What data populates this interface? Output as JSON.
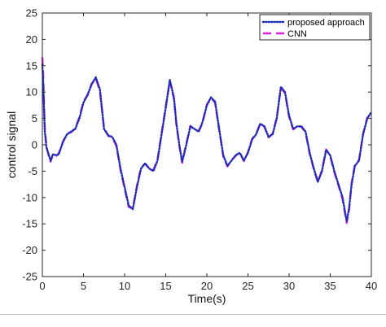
{
  "chart_data": {
    "type": "line",
    "title": "",
    "xlabel": "Time(s)",
    "ylabel": "control signal",
    "xlim": [
      0,
      40
    ],
    "ylim": [
      -25,
      25
    ],
    "xticks": [
      0,
      5,
      10,
      15,
      20,
      25,
      30,
      35,
      40
    ],
    "yticks": [
      -25,
      -20,
      -15,
      -10,
      -5,
      0,
      5,
      10,
      15,
      20,
      25
    ],
    "grid": false,
    "legend_position": "top-right",
    "x": [
      0,
      0.1,
      0.2,
      0.3,
      0.5,
      0.8,
      1,
      1.3,
      1.7,
      2,
      2.5,
      3,
      3.5,
      4,
      4.5,
      5,
      5.5,
      6,
      6.5,
      7,
      7.5,
      8,
      8.5,
      9,
      9.5,
      10,
      10.5,
      11,
      11.5,
      12,
      12.5,
      13,
      13.5,
      14,
      14.5,
      15,
      15.5,
      16,
      16.3,
      16.7,
      17,
      17.5,
      18,
      18.5,
      19,
      19.3,
      19.6,
      20,
      20.5,
      21,
      21.5,
      22,
      22.5,
      23,
      23.5,
      24,
      24.5,
      25,
      25.5,
      26,
      26.5,
      27,
      27.5,
      28,
      28.5,
      29,
      29.5,
      30,
      30.5,
      31,
      31.5,
      32,
      32.5,
      33,
      33.5,
      34,
      34.5,
      35,
      35.5,
      36,
      36.5,
      37,
      37.3,
      37.6,
      38,
      38.5,
      39,
      39.5,
      40
    ],
    "series": [
      {
        "name": "proposed approach",
        "color": "#1f2bb8",
        "style": "dotted",
        "values": [
          15.2,
          12,
          7,
          2.5,
          -0.5,
          -2,
          -3,
          -1.8,
          -2,
          -1.8,
          0.5,
          2,
          2.5,
          3,
          5,
          8,
          9.5,
          11.5,
          12.8,
          10.5,
          3,
          1.8,
          1.5,
          0,
          -4.5,
          -8,
          -11.5,
          -12.2,
          -8,
          -4.5,
          -3.5,
          -4.5,
          -5,
          -3,
          2,
          7,
          12.3,
          9,
          4,
          -0.5,
          -3.2,
          0,
          3.5,
          3,
          2.5,
          3.5,
          5,
          7.5,
          9,
          8.2,
          3,
          -2,
          -4,
          -3,
          -2,
          -1.5,
          -3,
          -1.5,
          1,
          2,
          4,
          3.5,
          1.5,
          2,
          5,
          11,
          10,
          5.5,
          3,
          3.5,
          3.5,
          2.5,
          -1.5,
          -4.5,
          -7,
          -5,
          -1,
          -2,
          -5,
          -7.5,
          -10,
          -14.5,
          -12,
          -7.5,
          -4,
          -3,
          2,
          5,
          6.2
        ]
      },
      {
        "name": "CNN",
        "color": "#e020e0",
        "style": "dashed",
        "values": [
          16.6,
          13.5,
          8,
          3,
          -0.3,
          -2.2,
          -3.2,
          -1.7,
          -2.1,
          -1.6,
          0.6,
          2.1,
          2.4,
          3.1,
          5.2,
          8.2,
          9.4,
          11.6,
          12.6,
          10.2,
          3.2,
          1.7,
          1.4,
          -0.2,
          -4.7,
          -8.3,
          -11.8,
          -12.1,
          -7.8,
          -4.3,
          -3.6,
          -4.6,
          -4.8,
          -2.8,
          2.2,
          7.2,
          12.1,
          8.7,
          3.8,
          -0.6,
          -3.4,
          0.2,
          3.6,
          2.9,
          2.6,
          3.6,
          5.1,
          7.6,
          8.9,
          8,
          2.8,
          -2.2,
          -4.1,
          -2.9,
          -2.1,
          -1.4,
          -3.1,
          -1.4,
          1.1,
          2.1,
          4.1,
          3.4,
          1.4,
          2.1,
          5.2,
          10.8,
          9.8,
          5.3,
          2.9,
          3.6,
          3.4,
          2.4,
          -1.7,
          -4.6,
          -7.1,
          -4.8,
          -0.9,
          -2.1,
          -5.2,
          -7.7,
          -10.3,
          -14.8,
          -12.2,
          -7.3,
          -3.8,
          -2.9,
          2.1,
          5.1,
          6
        ]
      }
    ]
  }
}
